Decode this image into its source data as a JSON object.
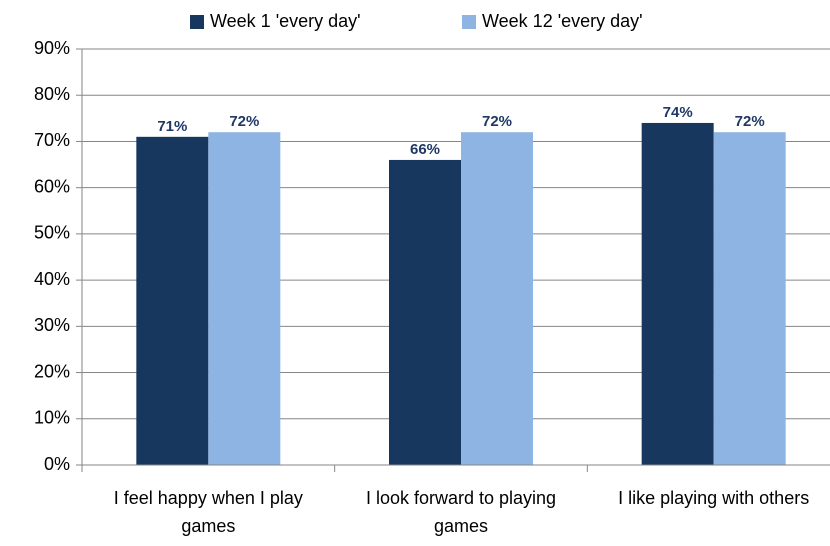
{
  "chart_data": {
    "type": "bar",
    "categories": [
      "I feel happy when I play games",
      "I look forward to playing games",
      "I like playing with others"
    ],
    "series": [
      {
        "name": "Week 1 'every day'",
        "color": "#17375e",
        "values": [
          71,
          66,
          74
        ],
        "value_labels": [
          "71%",
          "66%",
          "74%"
        ]
      },
      {
        "name": "Week 12 'every day'",
        "color": "#8eb4e3",
        "values": [
          72,
          72,
          72
        ],
        "value_labels": [
          "72%",
          "72%",
          "72%"
        ]
      }
    ],
    "ylim": [
      0,
      90
    ],
    "yticks": [
      {
        "value": 0,
        "label": "0%"
      },
      {
        "value": 10,
        "label": "10%"
      },
      {
        "value": 20,
        "label": "20%"
      },
      {
        "value": 30,
        "label": "30%"
      },
      {
        "value": 40,
        "label": "40%"
      },
      {
        "value": 50,
        "label": "50%"
      },
      {
        "value": 60,
        "label": "60%"
      },
      {
        "value": 70,
        "label": "70%"
      },
      {
        "value": 80,
        "label": "80%"
      },
      {
        "value": 90,
        "label": "90%"
      }
    ],
    "grid": true,
    "legend": "top"
  }
}
